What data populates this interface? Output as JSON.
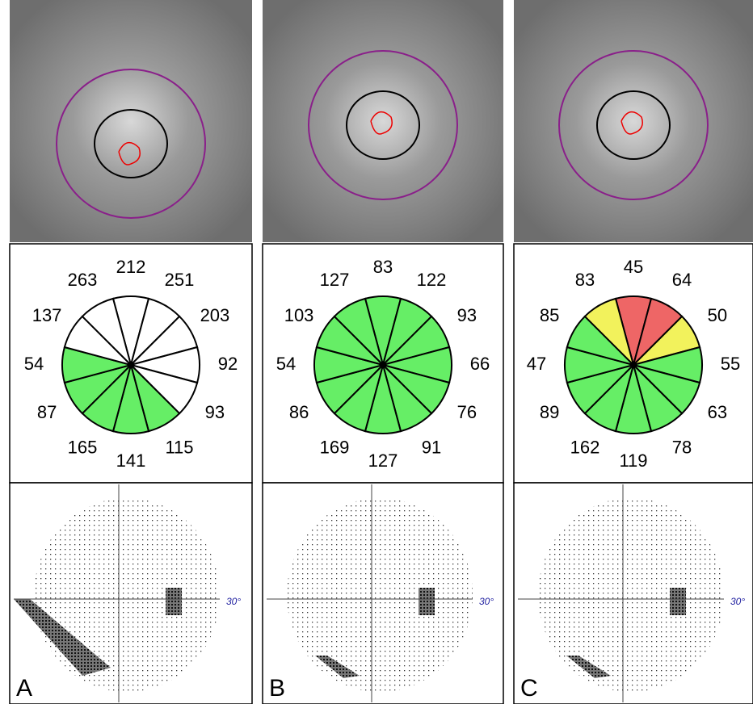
{
  "panels": [
    {
      "label": "A",
      "axis_label": "30°",
      "sectors": [
        {
          "value": 212,
          "color": "#ffffff"
        },
        {
          "value": 251,
          "color": "#ffffff"
        },
        {
          "value": 203,
          "color": "#ffffff"
        },
        {
          "value": 92,
          "color": "#ffffff"
        },
        {
          "value": 93,
          "color": "#ffffff"
        },
        {
          "value": 115,
          "color": "#66ee66"
        },
        {
          "value": 141,
          "color": "#66ee66"
        },
        {
          "value": 165,
          "color": "#66ee66"
        },
        {
          "value": 87,
          "color": "#66ee66"
        },
        {
          "value": 54,
          "color": "#66ee66"
        },
        {
          "value": 137,
          "color": "#ffffff"
        },
        {
          "value": 263,
          "color": "#ffffff"
        }
      ]
    },
    {
      "label": "B",
      "axis_label": "30°",
      "sectors": [
        {
          "value": 83,
          "color": "#66ee66"
        },
        {
          "value": 122,
          "color": "#66ee66"
        },
        {
          "value": 93,
          "color": "#66ee66"
        },
        {
          "value": 66,
          "color": "#66ee66"
        },
        {
          "value": 76,
          "color": "#66ee66"
        },
        {
          "value": 91,
          "color": "#66ee66"
        },
        {
          "value": 127,
          "color": "#66ee66"
        },
        {
          "value": 169,
          "color": "#66ee66"
        },
        {
          "value": 86,
          "color": "#66ee66"
        },
        {
          "value": 54,
          "color": "#66ee66"
        },
        {
          "value": 103,
          "color": "#66ee66"
        },
        {
          "value": 127,
          "color": "#66ee66"
        }
      ]
    },
    {
      "label": "C",
      "axis_label": "30°",
      "sectors": [
        {
          "value": 45,
          "color": "#ee6666"
        },
        {
          "value": 64,
          "color": "#ee6666"
        },
        {
          "value": 50,
          "color": "#f2f25c"
        },
        {
          "value": 55,
          "color": "#66ee66"
        },
        {
          "value": 63,
          "color": "#66ee66"
        },
        {
          "value": 78,
          "color": "#66ee66"
        },
        {
          "value": 119,
          "color": "#66ee66"
        },
        {
          "value": 162,
          "color": "#66ee66"
        },
        {
          "value": 89,
          "color": "#66ee66"
        },
        {
          "value": 47,
          "color": "#66ee66"
        },
        {
          "value": 85,
          "color": "#66ee66"
        },
        {
          "value": 83,
          "color": "#f2f25c"
        }
      ]
    }
  ]
}
